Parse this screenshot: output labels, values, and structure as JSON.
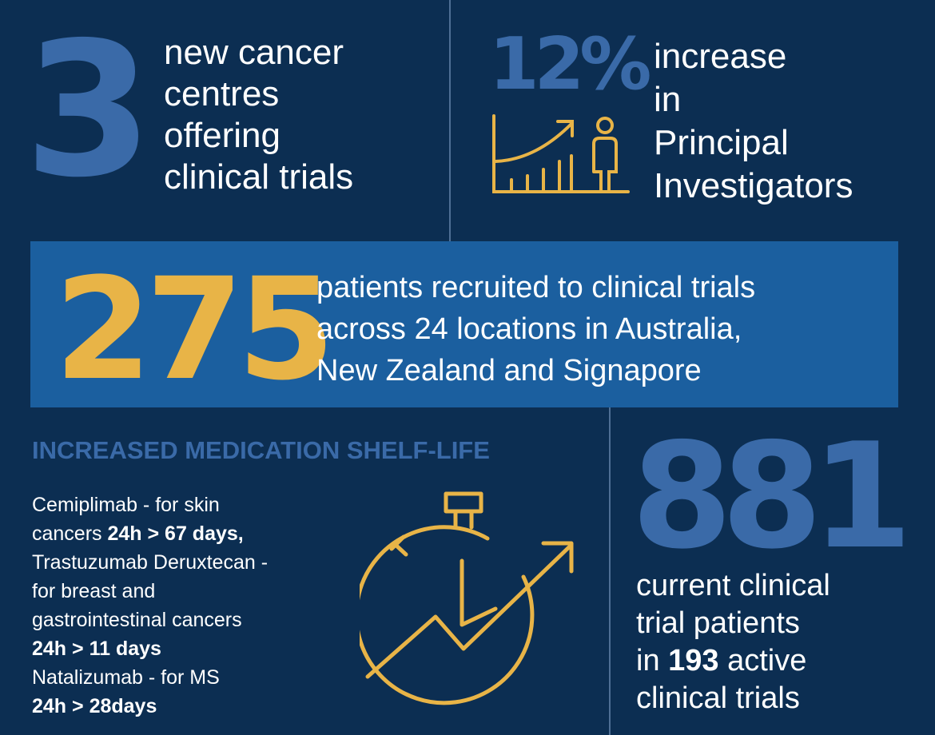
{
  "centres": {
    "number": "3",
    "lines": [
      "new cancer",
      "centres",
      "offering",
      "clinical trials"
    ]
  },
  "investigators": {
    "number": "12%",
    "lines": [
      "increase",
      "in",
      "Principal",
      "Investigators"
    ]
  },
  "patients": {
    "number": "275",
    "lines": [
      "patients recruited to clinical trials",
      "across 24 locations in Australia,",
      "New Zealand and Signapore"
    ]
  },
  "medication": {
    "heading": "INCREASED MEDICATION SHELF-LIFE",
    "lines": [
      [
        "Cemiplimab - for skin"
      ],
      [
        "cancers ",
        "24h > 67 days",
        ","
      ],
      [
        "Trastuzumab Deruxtecan -"
      ],
      [
        "for breast and"
      ],
      [
        "gastrointestinal cancers"
      ],
      [
        "24h > 11 days"
      ],
      [
        "Natalizumab - for MS"
      ],
      [
        "24h > 28days"
      ]
    ]
  },
  "current": {
    "number": "881",
    "lines": [
      [
        "current clinical"
      ],
      [
        "trial patients"
      ],
      [
        "in ",
        "193",
        " active"
      ],
      [
        "clinical trials"
      ]
    ]
  }
}
